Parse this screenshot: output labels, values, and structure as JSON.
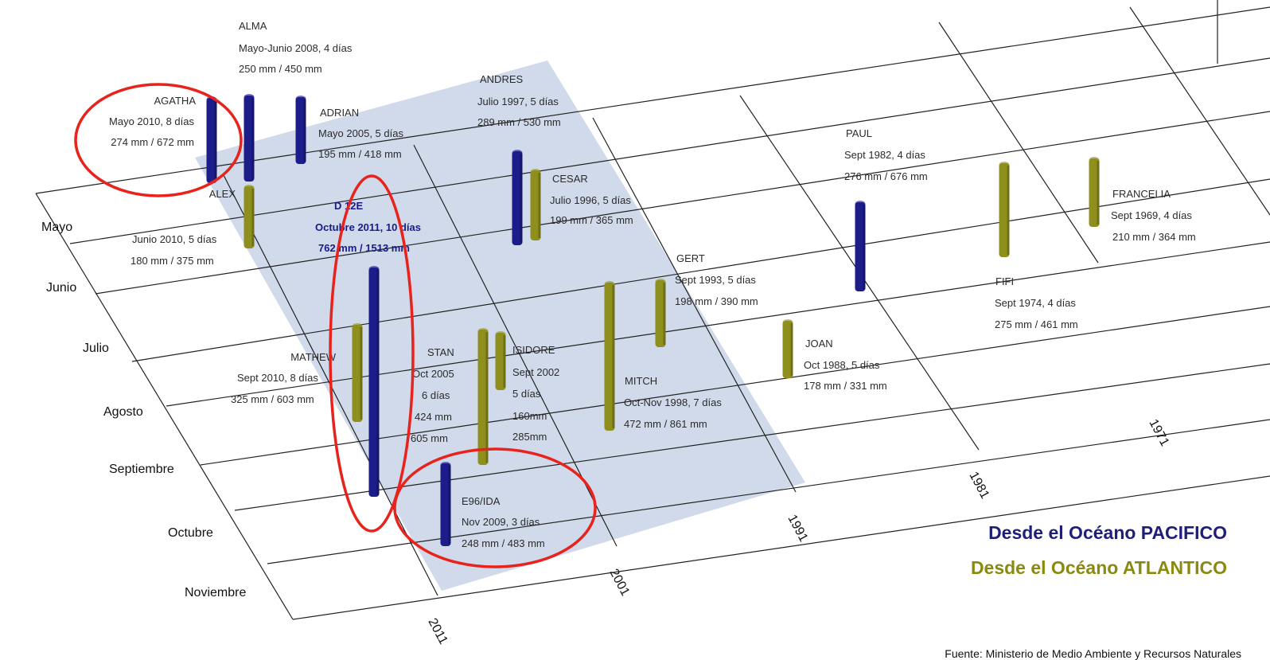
{
  "chart_data": {
    "type": "bar",
    "months": [
      "Mayo",
      "Junio",
      "Julio",
      "Agosto",
      "Septiembre",
      "Octubre",
      "Noviembre"
    ],
    "years": [
      "2011",
      "2001",
      "1991",
      "1981",
      "1971"
    ],
    "legend": {
      "pacific": {
        "text": "Desde el Océano PACIFICO",
        "color": "#1f1f7a"
      },
      "atlantic": {
        "text": "Desde el Océano ATLANTICO",
        "color": "#8a8a10"
      }
    },
    "colors": {
      "pacific": "#1c1c8a",
      "atlantic": "#8f8f1e",
      "band": "#c8d3e6",
      "highlight": "#e8221c"
    },
    "source": "Fuente: Ministerio de Medio Ambiente y Recursos Naturales",
    "storms": [
      {
        "name": "ALMA",
        "date": "Mayo-Junio 2008, 4 días",
        "rain": "250 mm / 450 mm",
        "origin": "pacific"
      },
      {
        "name": "AGATHA",
        "date": "Mayo 2010, 8 días",
        "rain": "274 mm / 672 mm",
        "origin": "pacific"
      },
      {
        "name": "ADRIAN",
        "date": "Mayo 2005, 5 días",
        "rain": "195 mm / 418 mm",
        "origin": "pacific"
      },
      {
        "name": "ANDRES",
        "date": "Julio 1997, 5 días",
        "rain": "289 mm / 530 mm",
        "origin": "pacific"
      },
      {
        "name": "CESAR",
        "date": "Julio 1996, 5 días",
        "rain": "199 mm / 365 mm",
        "origin": "atlantic"
      },
      {
        "name": "ALEX",
        "date": "Junio 2010, 5 días",
        "rain": "180 mm / 375 mm",
        "origin": "atlantic"
      },
      {
        "name": "D 12E",
        "date": "Octubre 2011, 10 días",
        "rain": "762 mm / 1513 mm",
        "origin": "pacific"
      },
      {
        "name": "GERT",
        "date": "Sept 1993, 5 días",
        "rain": "198 mm / 390 mm",
        "origin": "atlantic"
      },
      {
        "name": "PAUL",
        "date": "Sept 1982, 4 días",
        "rain": "276 mm / 676 mm",
        "origin": "pacific"
      },
      {
        "name": "FRANCELIA",
        "date": "Sept 1969, 4 días",
        "rain": "210 mm / 364 mm",
        "origin": "atlantic"
      },
      {
        "name": "FIFI",
        "date": "Sept 1974, 4 días",
        "rain": "275 mm / 461 mm",
        "origin": "atlantic"
      },
      {
        "name": "JOAN",
        "date": "Oct 1988, 5 días",
        "rain": "178 mm / 331 mm",
        "origin": "atlantic"
      },
      {
        "name": "MATHEW",
        "date": "Sept 2010, 8 días",
        "rain": "325 mm / 603 mm",
        "origin": "atlantic"
      },
      {
        "name": "STAN",
        "date": "Oct 2005",
        "days": "6 días",
        "r1": "424 mm",
        "r2": "605 mm",
        "origin": "atlantic"
      },
      {
        "name": "ISIDORE",
        "date": "Sept 2002",
        "days": "5 días",
        "r1": "160mm",
        "r2": "285mm",
        "origin": "atlantic"
      },
      {
        "name": "MITCH",
        "date": "Oct-Nov 1998, 7 días",
        "rain": "472 mm / 861 mm",
        "origin": "atlantic"
      },
      {
        "name": "E96/IDA",
        "date": "Nov 2009, 3 días",
        "rain": "248 mm / 483 mm",
        "origin": "pacific"
      }
    ]
  }
}
